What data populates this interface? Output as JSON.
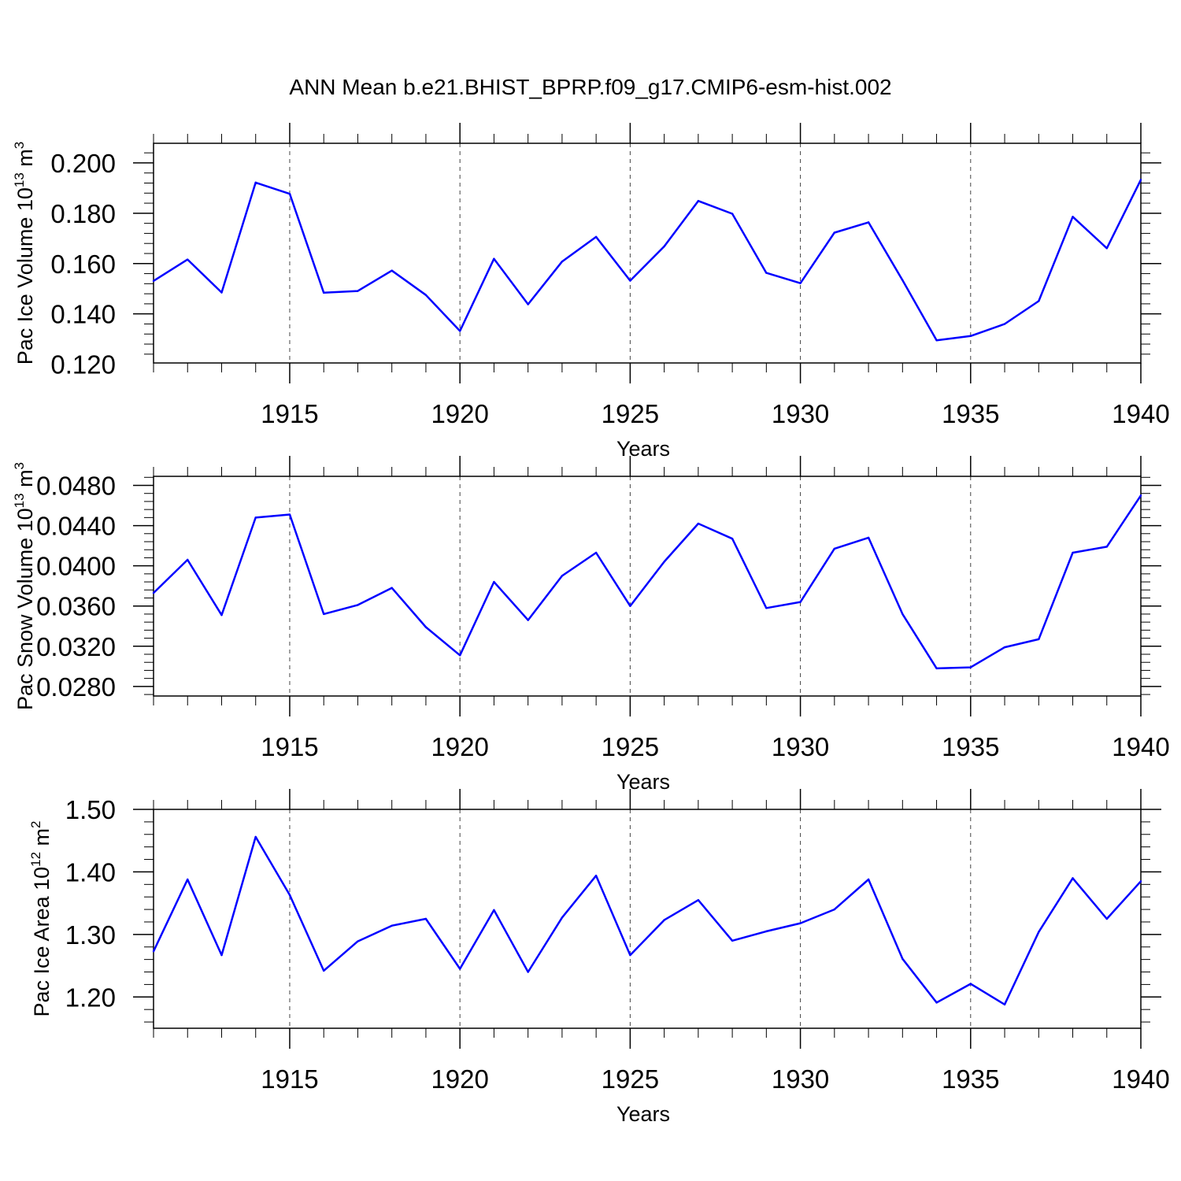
{
  "figure_title": "ANN Mean b.e21.BHIST_BPRP.f09_g17.CMIP6-esm-hist.002",
  "colors": {
    "series": "#0000ff",
    "axis": "#000000",
    "grid": "#444444"
  },
  "chart_data": [
    {
      "type": "line",
      "ylabel": {
        "text": "Pac Ice Volume 10",
        "exp": "13",
        "unit": " m",
        "unit_exp": "3"
      },
      "xlabel": "Years",
      "xlim": [
        1911,
        1940
      ],
      "ylim": [
        0.1205,
        0.2078
      ],
      "yticks": [
        0.12,
        0.14,
        0.16,
        0.18,
        0.2
      ],
      "ytick_labels": [
        "0.120",
        "0.140",
        "0.160",
        "0.180",
        "0.200"
      ],
      "xticks": [
        1915,
        1920,
        1925,
        1930,
        1935,
        1940
      ],
      "xtick_labels": [
        "1915",
        "1920",
        "1925",
        "1930",
        "1935",
        "1940"
      ],
      "grid": "vertical-dashed",
      "x": [
        1911,
        1912,
        1913,
        1914,
        1915,
        1916,
        1917,
        1918,
        1919,
        1920,
        1921,
        1922,
        1923,
        1924,
        1925,
        1926,
        1927,
        1928,
        1929,
        1930,
        1931,
        1932,
        1933,
        1934,
        1935,
        1936,
        1937,
        1938,
        1939,
        1940
      ],
      "values": [
        0.1531,
        0.1616,
        0.1485,
        0.1922,
        0.1877,
        0.1484,
        0.1491,
        0.1572,
        0.1475,
        0.1332,
        0.1619,
        0.1438,
        0.1608,
        0.1706,
        0.1532,
        0.1668,
        0.1849,
        0.1798,
        0.1563,
        0.1522,
        0.1723,
        0.1764,
        0.1534,
        0.1295,
        0.1312,
        0.136,
        0.1451,
        0.1786,
        0.1661,
        0.1933
      ]
    },
    {
      "type": "line",
      "ylabel": {
        "text": "Pac Snow Volume 10",
        "exp": "13",
        "unit": " m",
        "unit_exp": "3"
      },
      "xlabel": "Years",
      "xlim": [
        1911,
        1940
      ],
      "ylim": [
        0.02705,
        0.0489
      ],
      "yticks": [
        0.028,
        0.032,
        0.036,
        0.04,
        0.044,
        0.048
      ],
      "ytick_labels": [
        "0.0280",
        "0.0320",
        "0.0360",
        "0.0400",
        "0.0440",
        "0.0480"
      ],
      "xticks": [
        1915,
        1920,
        1925,
        1930,
        1935,
        1940
      ],
      "xtick_labels": [
        "1915",
        "1920",
        "1925",
        "1930",
        "1935",
        "1940"
      ],
      "grid": "vertical-dashed",
      "x": [
        1911,
        1912,
        1913,
        1914,
        1915,
        1916,
        1917,
        1918,
        1919,
        1920,
        1921,
        1922,
        1923,
        1924,
        1925,
        1926,
        1927,
        1928,
        1929,
        1930,
        1931,
        1932,
        1933,
        1934,
        1935,
        1936,
        1937,
        1938,
        1939,
        1940
      ],
      "values": [
        0.0373,
        0.0406,
        0.0351,
        0.0448,
        0.0451,
        0.0352,
        0.0361,
        0.0378,
        0.0339,
        0.0311,
        0.0384,
        0.0346,
        0.039,
        0.0413,
        0.036,
        0.0404,
        0.0442,
        0.0427,
        0.0358,
        0.0364,
        0.0417,
        0.0428,
        0.0352,
        0.0298,
        0.0299,
        0.0319,
        0.0327,
        0.0413,
        0.0419,
        0.047
      ]
    },
    {
      "type": "line",
      "ylabel": {
        "text": "Pac Ice Area 10",
        "exp": "12",
        "unit": " m",
        "unit_exp": "2"
      },
      "xlabel": "Years",
      "xlim": [
        1911,
        1940
      ],
      "ylim": [
        1.15,
        1.5
      ],
      "yticks": [
        1.2,
        1.3,
        1.4,
        1.5
      ],
      "ytick_labels": [
        "1.20",
        "1.30",
        "1.40",
        "1.50"
      ],
      "xticks": [
        1915,
        1920,
        1925,
        1930,
        1935,
        1940
      ],
      "xtick_labels": [
        "1915",
        "1920",
        "1925",
        "1930",
        "1935",
        "1940"
      ],
      "grid": "vertical-dashed",
      "x": [
        1911,
        1912,
        1913,
        1914,
        1915,
        1916,
        1917,
        1918,
        1919,
        1920,
        1921,
        1922,
        1923,
        1924,
        1925,
        1926,
        1927,
        1928,
        1929,
        1930,
        1931,
        1932,
        1933,
        1934,
        1935,
        1936,
        1937,
        1938,
        1939,
        1940
      ],
      "values": [
        1.273,
        1.388,
        1.267,
        1.456,
        1.363,
        1.242,
        1.289,
        1.314,
        1.325,
        1.245,
        1.339,
        1.24,
        1.327,
        1.394,
        1.267,
        1.323,
        1.355,
        1.29,
        1.305,
        1.318,
        1.34,
        1.388,
        1.261,
        1.191,
        1.221,
        1.188,
        1.304,
        1.39,
        1.325,
        1.385
      ]
    }
  ]
}
